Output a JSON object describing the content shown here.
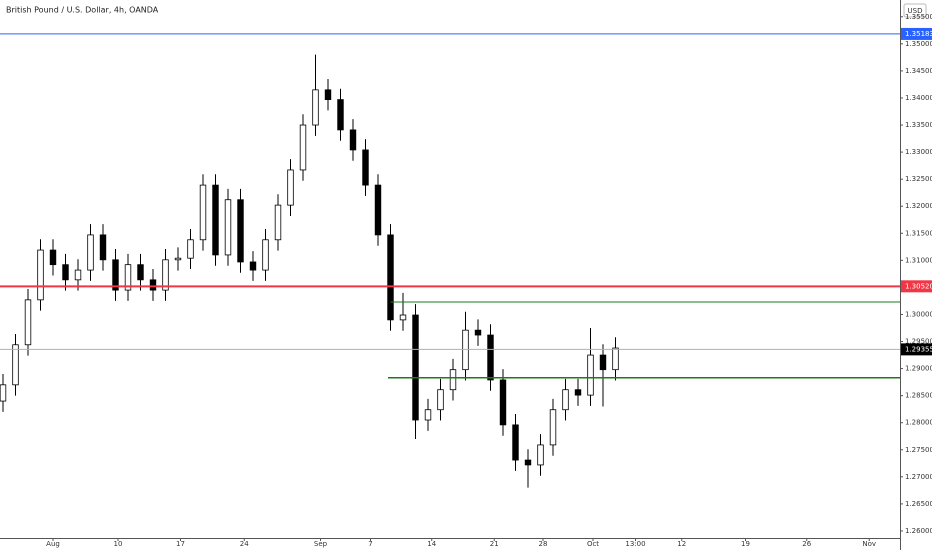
{
  "chart_data": {
    "type": "candlestick",
    "title": "British Pound / U.S. Dollar, 4h, OANDA",
    "currency": "USD",
    "up_color": "#ffffff",
    "down_color": "#000000",
    "outline_color": "#000000",
    "x": [
      -4,
      -3,
      -2,
      -1,
      0,
      1,
      2,
      3,
      4,
      5,
      6,
      7,
      8,
      9,
      10,
      11,
      12,
      13,
      14,
      15,
      16,
      17,
      18,
      19,
      20,
      21,
      22,
      23,
      24,
      25,
      26,
      27,
      28,
      29,
      30,
      31,
      32,
      33,
      34,
      35,
      36,
      37,
      38,
      39,
      40,
      41,
      42,
      43,
      44,
      45
    ],
    "open": [
      1.284,
      1.287,
      1.2944,
      1.3027,
      1.3119,
      1.3092,
      1.3064,
      1.3082,
      1.3147,
      1.3101,
      1.3045,
      1.3092,
      1.3064,
      1.3045,
      1.3101,
      1.3104,
      1.3138,
      1.3239,
      1.311,
      1.3212,
      1.3097,
      1.3082,
      1.3138,
      1.3202,
      1.3267,
      1.335,
      1.3415,
      1.3397,
      1.3341,
      1.3304,
      1.3239,
      1.3147,
      1.299,
      1.2999,
      1.2805,
      1.2824,
      1.2861,
      1.2898,
      1.2971,
      1.2962,
      1.2879,
      1.2796,
      1.2731,
      1.2722,
      1.2759,
      1.2824,
      1.2861,
      1.2851,
      1.2925,
      1.2898
    ],
    "high": [
      1.289,
      1.2964,
      1.3047,
      1.3139,
      1.3139,
      1.3112,
      1.3102,
      1.3167,
      1.3167,
      1.3121,
      1.3112,
      1.3112,
      1.3084,
      1.3121,
      1.3124,
      1.3158,
      1.3259,
      1.3259,
      1.3232,
      1.3232,
      1.3117,
      1.3158,
      1.3222,
      1.3287,
      1.337,
      1.348,
      1.3435,
      1.3417,
      1.3361,
      1.3324,
      1.3259,
      1.3167,
      1.304,
      1.3019,
      1.2844,
      1.2881,
      1.2918,
      1.3005,
      1.2991,
      1.2982,
      1.2899,
      1.2816,
      1.2751,
      1.2779,
      1.2844,
      1.2881,
      1.2881,
      1.2975,
      1.2945,
      1.2958
    ],
    "low": [
      1.282,
      1.285,
      1.2924,
      1.3007,
      1.3072,
      1.3044,
      1.3044,
      1.3062,
      1.3081,
      1.3025,
      1.3025,
      1.3044,
      1.3025,
      1.3025,
      1.3081,
      1.3084,
      1.3118,
      1.309,
      1.309,
      1.3077,
      1.3062,
      1.3062,
      1.3118,
      1.3182,
      1.3247,
      1.333,
      1.3377,
      1.3321,
      1.3284,
      1.3219,
      1.3127,
      1.297,
      1.297,
      1.277,
      1.2785,
      1.2804,
      1.2841,
      1.2878,
      1.2942,
      1.2859,
      1.2776,
      1.2711,
      1.268,
      1.2702,
      1.2739,
      1.2804,
      1.2831,
      1.2831,
      1.283,
      1.2878
    ],
    "close": [
      1.287,
      1.2944,
      1.3027,
      1.3119,
      1.3092,
      1.3064,
      1.3082,
      1.3147,
      1.3101,
      1.3045,
      1.3092,
      1.3064,
      1.3045,
      1.3101,
      1.3104,
      1.3138,
      1.3239,
      1.311,
      1.3212,
      1.3097,
      1.3082,
      1.3138,
      1.3202,
      1.3267,
      1.335,
      1.3415,
      1.3397,
      1.3341,
      1.3304,
      1.3239,
      1.3147,
      1.299,
      1.2999,
      1.2805,
      1.2824,
      1.2861,
      1.2898,
      1.2971,
      1.2962,
      1.2879,
      1.2796,
      1.2731,
      1.2722,
      1.2759,
      1.2824,
      1.2861,
      1.2851,
      1.2925,
      1.2898,
      1.2938
    ],
    "levels": [
      {
        "value": 1.35183,
        "label": "1.35183",
        "color": "#2962ff",
        "width": 1
      },
      {
        "value": 1.3052,
        "label": "1.30520",
        "color": "#f23645",
        "width": 2
      },
      {
        "value": 1.3023,
        "color": "#1b7a1b",
        "width": 1,
        "x_start": 27
      },
      {
        "value": 1.2883,
        "color": "#1b7a1b",
        "width": 1.5,
        "x_start": 26.8
      },
      {
        "value": 1.29355,
        "label": "1.29355",
        "color": "#b0b0b0",
        "label_color": "#000000",
        "width": 1
      }
    ],
    "xlim": [
      -4.24,
      67.76
    ],
    "xticks": [
      {
        "value": 0,
        "label": "Aug"
      },
      10.5,
      {
        "value": 5.2,
        "label": "10"
      },
      {
        "value": 10.2,
        "label": "17"
      },
      {
        "value": 15.3,
        "label": "24"
      },
      {
        "value": 21.4,
        "label": "Sep"
      },
      {
        "value": 25.4,
        "label": "7"
      },
      {
        "value": 30.3,
        "label": "14"
      },
      {
        "value": 35.3,
        "label": "21"
      },
      {
        "value": 39.2,
        "label": "28"
      },
      {
        "value": 43.2,
        "label": "Oct"
      },
      {
        "value": 46.6,
        "label": "13:00"
      },
      {
        "value": 50.3,
        "label": "12"
      },
      {
        "value": 55.4,
        "label": "19"
      },
      {
        "value": 60.3,
        "label": "26"
      },
      {
        "value": 65.3,
        "label": "Nov"
      }
    ],
    "ylim": [
      1.2587,
      1.3581
    ],
    "yticks": [
      {
        "value": 1.26,
        "label": "1.26000"
      },
      {
        "value": 1.265,
        "label": "1.26500"
      },
      {
        "value": 1.27,
        "label": "1.27000"
      },
      {
        "value": 1.275,
        "label": "1.27500"
      },
      {
        "value": 1.28,
        "label": "1.28000"
      },
      {
        "value": 1.285,
        "label": "1.28500"
      },
      {
        "value": 1.29,
        "label": "1.29000"
      },
      {
        "value": 1.295,
        "label": "1.29500"
      },
      {
        "value": 1.3,
        "label": "1.30000"
      },
      {
        "value": 1.305,
        "label": "1.30500"
      },
      {
        "value": 1.31,
        "label": "1.31000"
      },
      {
        "value": 1.315,
        "label": "1.31500"
      },
      {
        "value": 1.32,
        "label": "1.32000"
      },
      {
        "value": 1.325,
        "label": "1.32500"
      },
      {
        "value": 1.33,
        "label": "1.33000"
      },
      {
        "value": 1.335,
        "label": "1.33500"
      },
      {
        "value": 1.34,
        "label": "1.34000"
      },
      {
        "value": 1.345,
        "label": "1.34500"
      },
      {
        "value": 1.35,
        "label": "1.35000"
      },
      {
        "value": 1.355,
        "label": "1.35500"
      }
    ],
    "grid": false
  }
}
